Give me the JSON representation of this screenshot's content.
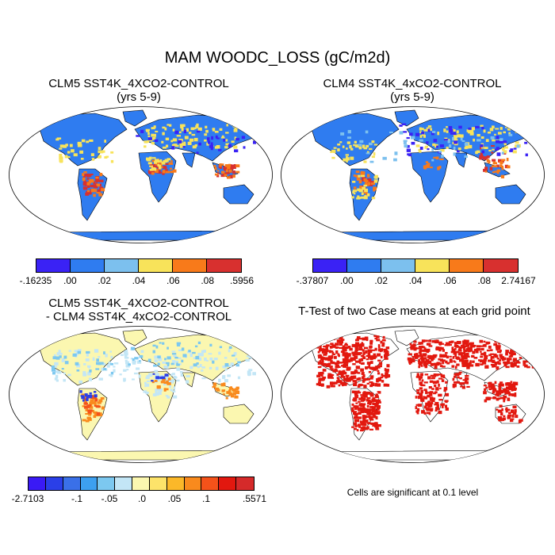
{
  "main_title": "MAM WOODC_LOSS (gC/m2d)",
  "panels": [
    {
      "title_line1": "CLM5 SST4K_4XCO2-CONTROL",
      "title_line2": "(yrs 5-9)",
      "colorbar": {
        "colors": [
          "#3a22f5",
          "#2f7cf0",
          "#7cc0ee",
          "#f8e35a",
          "#f87a1a",
          "#d8302f"
        ],
        "labels": [
          "-.16235",
          ".00",
          ".02",
          ".04",
          ".06",
          ".08",
          ".5956"
        ]
      }
    },
    {
      "title_line1": "CLM4 SST4K_4xCO2-CONTROL",
      "title_line2": "(yrs 5-9)",
      "colorbar": {
        "colors": [
          "#3a22f5",
          "#2f7cf0",
          "#7cc0ee",
          "#f8e35a",
          "#f87a1a",
          "#d8302f"
        ],
        "labels": [
          "-.37807",
          ".00",
          ".02",
          ".04",
          ".06",
          ".08",
          "2.74167"
        ]
      }
    },
    {
      "title_line1": "CLM5 SST4K_4XCO2-CONTROL",
      "title_line2": "- CLM4 SST4K_4xCO2-CONTROL",
      "colorbar": {
        "colors": [
          "#3a1af5",
          "#2a3fe8",
          "#3a70e8",
          "#3da0f0",
          "#7cc8f0",
          "#c3e6f6",
          "#fbf7b0",
          "#fde36a",
          "#fbb829",
          "#f98a1d",
          "#f4521a",
          "#e2180f",
          "#d52a2a"
        ],
        "labels": [
          "-2.7103",
          "-.1",
          "-.05",
          ".0",
          ".05",
          ".1",
          ".5571"
        ]
      }
    },
    {
      "title_line1": "T-Test of two Case means at each grid point",
      "note": "Cells are significant at 0.1 level"
    }
  ]
}
